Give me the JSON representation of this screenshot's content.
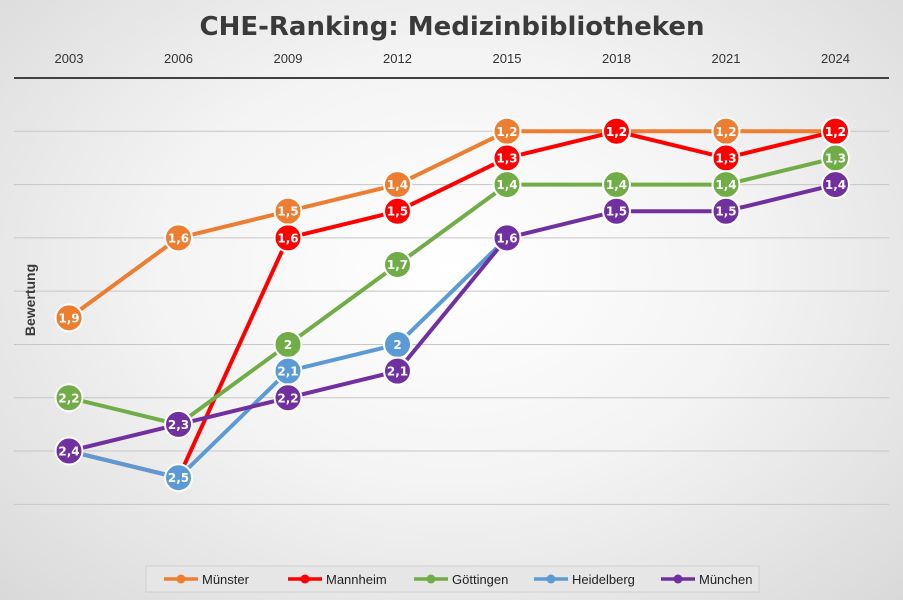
{
  "chart_data": {
    "type": "line",
    "title": "CHE-Ranking: Medizinbibliotheken",
    "ylabel": "Bewertung",
    "xlabel": "",
    "x": [
      "2003",
      "2006",
      "2009",
      "2012",
      "2015",
      "2018",
      "2021",
      "2024"
    ],
    "ylim": [
      1.0,
      2.7
    ],
    "y_reversed": true,
    "grid": true,
    "legend_position": "bottom",
    "series": [
      {
        "name": "Münster",
        "color": "#ED7D31",
        "values": [
          1.9,
          1.6,
          1.5,
          1.4,
          1.2,
          1.2,
          1.2,
          1.2
        ],
        "labels": [
          "1,9",
          "1,6",
          "1,5",
          "1,4",
          "1,2",
          "1,2",
          "1,2",
          "1,2"
        ]
      },
      {
        "name": "Mannheim",
        "color": "#FF0000",
        "values": [
          2.4,
          2.5,
          1.6,
          1.5,
          1.3,
          1.2,
          1.3,
          1.2
        ],
        "labels": [
          "",
          "",
          "1,6",
          "1,5",
          "1,3",
          "1,2",
          "1,3",
          "1,2"
        ]
      },
      {
        "name": "Göttingen",
        "color": "#70AD47",
        "values": [
          2.2,
          2.3,
          2.0,
          1.7,
          1.4,
          1.4,
          1.4,
          1.3
        ],
        "labels": [
          "2,2",
          "",
          "2",
          "1,7",
          "1,4",
          "1,4",
          "1,4",
          "1,3"
        ]
      },
      {
        "name": "Heidelberg",
        "color": "#5B9BD5",
        "values": [
          2.4,
          2.5,
          2.1,
          2.0,
          1.6,
          null,
          null,
          null
        ],
        "labels": [
          "",
          "2,5",
          "2,1",
          "2",
          "",
          "",
          "",
          ""
        ]
      },
      {
        "name": "München",
        "color": "#7030A0",
        "values": [
          2.4,
          2.3,
          2.2,
          2.1,
          1.6,
          1.5,
          1.5,
          1.4
        ],
        "labels": [
          "2,4",
          "2,3",
          "2,2",
          "2,1",
          "1,6",
          "1,5",
          "1,5",
          "1,4"
        ]
      }
    ]
  }
}
